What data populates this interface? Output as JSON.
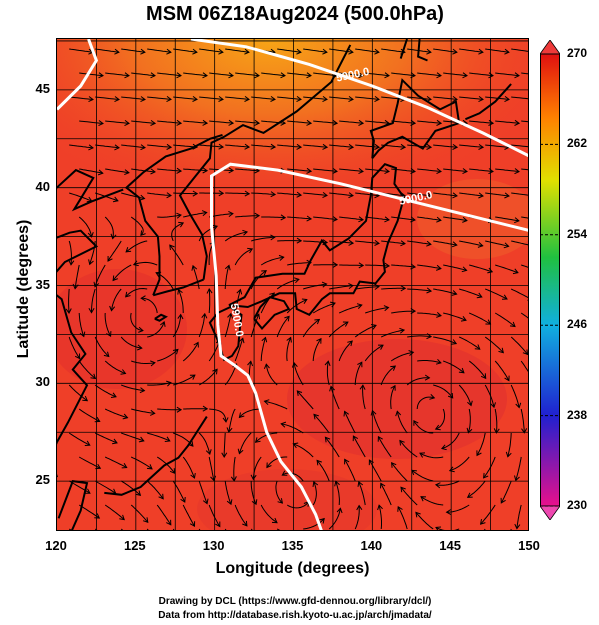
{
  "header": {
    "title": "MSM 06Z18Aug2024 (500.0hPa)"
  },
  "axes": {
    "x_title": "Longitude (degrees)",
    "y_title": "Latitude  (degrees)",
    "x_ticks": [
      "120",
      "125",
      "130",
      "135",
      "140",
      "145",
      "150"
    ],
    "y_ticks": [
      "45",
      "40",
      "35",
      "30",
      "25"
    ],
    "x_range": [
      120,
      150
    ],
    "y_range": [
      22.4,
      47.6
    ]
  },
  "colorbar": {
    "labels": [
      "270",
      "262",
      "254",
      "246",
      "238",
      "230"
    ],
    "range": [
      230,
      270
    ],
    "colors": [
      "#e8108c",
      "#2020d0",
      "#10b0e0",
      "#20c040",
      "#e0e000",
      "#ff8000",
      "#e01010"
    ]
  },
  "contours": {
    "label": "5900.0",
    "color": "#ffffff"
  },
  "field_colors": {
    "warm": "#ee3a2a",
    "warmer": "#f36a1a",
    "warmest": "#f5a018"
  },
  "credits": {
    "line1": "Drawing by DCL (https://www.gfd-dennou.org/library/dcl/)",
    "line2": "Data from http://database.rish.kyoto-u.ac.jp/arch/jmadata/"
  }
}
